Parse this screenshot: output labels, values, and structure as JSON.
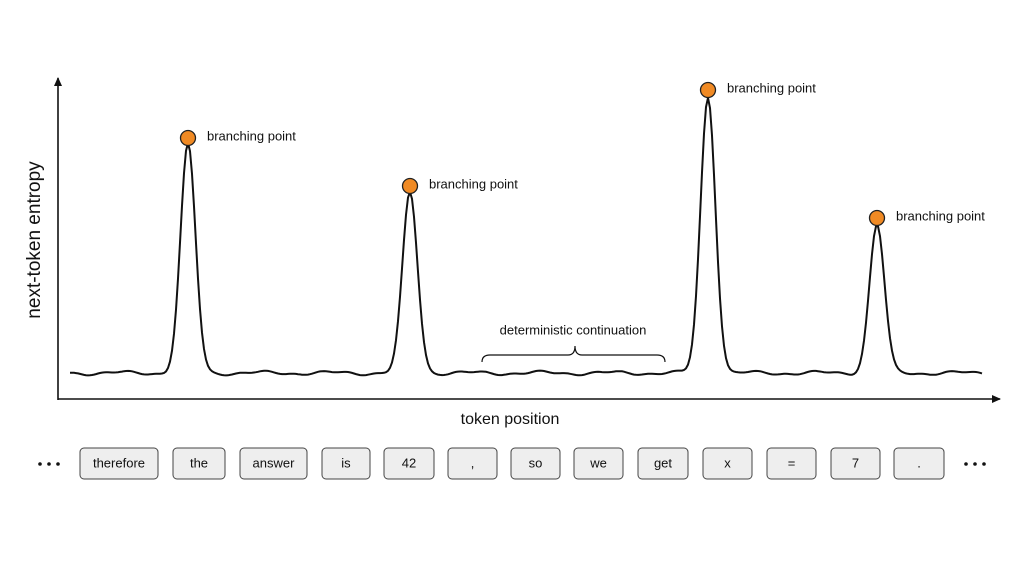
{
  "axes": {
    "y_label": "next-token entropy",
    "x_label": "token position"
  },
  "annotations": {
    "branching_points": [
      "branching point",
      "branching point",
      "branching point",
      "branching point"
    ],
    "bracket_label": "deterministic continuation"
  },
  "tokens": [
    "therefore",
    "the",
    "answer",
    "is",
    "42",
    ",",
    "so",
    "we",
    "get",
    "x",
    "=",
    "7",
    "."
  ]
}
